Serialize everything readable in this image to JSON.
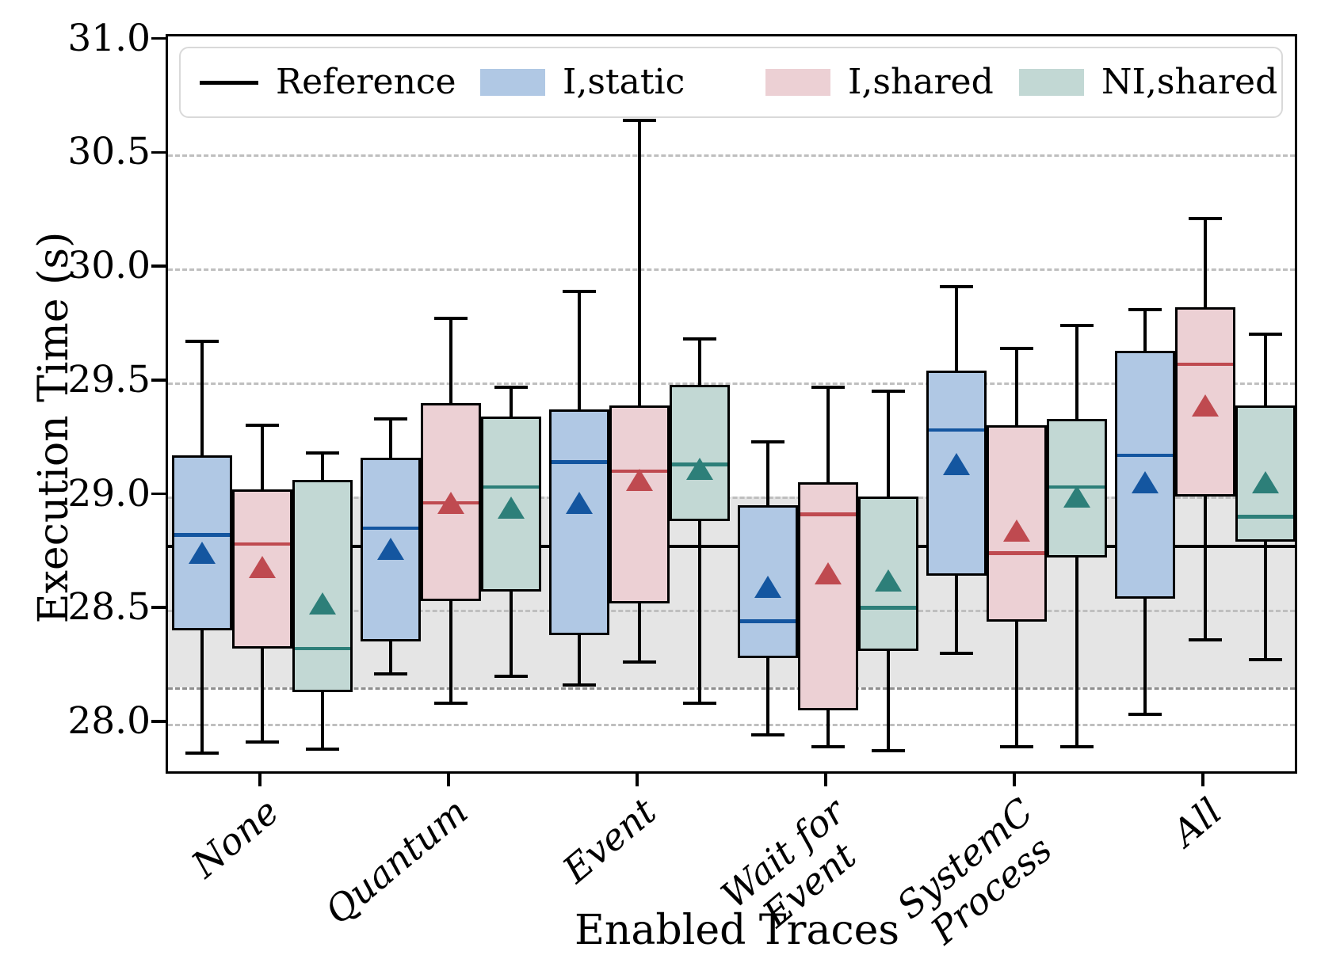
{
  "chart_data": {
    "type": "box",
    "title": "",
    "xlabel": "Enabled Traces",
    "ylabel": "Execution Time (s)",
    "ylim": [
      27.77,
      31.02
    ],
    "yticks": [
      28.0,
      28.5,
      29.0,
      29.5,
      30.0,
      30.5,
      31.0
    ],
    "ytick_labels": [
      "28.0",
      "28.5",
      "29.0",
      "29.5",
      "30.0",
      "30.5",
      "31.0"
    ],
    "categories": [
      "None",
      "Quantum",
      "Event",
      "Wait for\nEvent",
      "SystemC\nProcess",
      "All"
    ],
    "grid": "dashed horizontal at each 0.5",
    "legend_position": "top inside plot",
    "reference": {
      "label": "Reference",
      "value": 28.78,
      "color": "#000000",
      "band": [
        28.16,
        29.0
      ],
      "band_fill": "#e5e5e5",
      "band_edge_color": "#8f8f8f"
    },
    "series": [
      {
        "name": "I,static",
        "fill": "#b0c8e4",
        "line": "#1456a0",
        "boxes": [
          {
            "whislo": 27.87,
            "q1": 28.41,
            "med": 28.83,
            "q3": 29.18,
            "whishi": 29.68,
            "mean": 28.75
          },
          {
            "whislo": 28.22,
            "q1": 28.36,
            "med": 28.86,
            "q3": 29.17,
            "whishi": 29.34,
            "mean": 28.77
          },
          {
            "whislo": 28.17,
            "q1": 28.39,
            "med": 29.15,
            "q3": 29.38,
            "whishi": 29.9,
            "mean": 28.97
          },
          {
            "whislo": 27.95,
            "q1": 28.29,
            "med": 28.45,
            "q3": 28.96,
            "whishi": 29.24,
            "mean": 28.6
          },
          {
            "whislo": 28.31,
            "q1": 28.65,
            "med": 29.29,
            "q3": 29.55,
            "whishi": 29.92,
            "mean": 29.14
          },
          {
            "whislo": 28.04,
            "q1": 28.55,
            "med": 29.18,
            "q3": 29.64,
            "whishi": 29.82,
            "mean": 29.06
          }
        ]
      },
      {
        "name": "I,shared",
        "fill": "#ecd0d4",
        "line": "#bf4a50",
        "boxes": [
          {
            "whislo": 27.92,
            "q1": 28.33,
            "med": 28.79,
            "q3": 29.03,
            "whishi": 29.31,
            "mean": 28.69
          },
          {
            "whislo": 28.09,
            "q1": 28.54,
            "med": 28.97,
            "q3": 29.41,
            "whishi": 29.78,
            "mean": 28.97
          },
          {
            "whislo": 28.27,
            "q1": 28.53,
            "med": 29.11,
            "q3": 29.4,
            "whishi": 30.65,
            "mean": 29.07
          },
          {
            "whislo": 27.9,
            "q1": 28.06,
            "med": 28.92,
            "q3": 29.06,
            "whishi": 29.48,
            "mean": 28.66
          },
          {
            "whislo": 27.9,
            "q1": 28.45,
            "med": 28.75,
            "q3": 29.31,
            "whishi": 29.65,
            "mean": 28.85
          },
          {
            "whislo": 28.37,
            "q1": 29.0,
            "med": 29.58,
            "q3": 29.83,
            "whishi": 30.22,
            "mean": 29.4
          }
        ]
      },
      {
        "name": "NI,shared",
        "fill": "#c2d8d4",
        "line": "#2d7f79",
        "boxes": [
          {
            "whislo": 27.89,
            "q1": 28.14,
            "med": 28.33,
            "q3": 29.07,
            "whishi": 29.19,
            "mean": 28.53
          },
          {
            "whislo": 28.21,
            "q1": 28.58,
            "med": 29.04,
            "q3": 29.35,
            "whishi": 29.48,
            "mean": 28.95
          },
          {
            "whislo": 28.09,
            "q1": 28.89,
            "med": 29.14,
            "q3": 29.49,
            "whishi": 29.69,
            "mean": 29.12
          },
          {
            "whislo": 27.88,
            "q1": 28.32,
            "med": 28.51,
            "q3": 29.0,
            "whishi": 29.46,
            "mean": 28.63
          },
          {
            "whislo": 27.9,
            "q1": 28.73,
            "med": 29.04,
            "q3": 29.34,
            "whishi": 29.75,
            "mean": 29.0
          },
          {
            "whislo": 28.28,
            "q1": 28.8,
            "med": 28.91,
            "q3": 29.4,
            "whishi": 29.71,
            "mean": 29.06
          }
        ]
      }
    ]
  }
}
